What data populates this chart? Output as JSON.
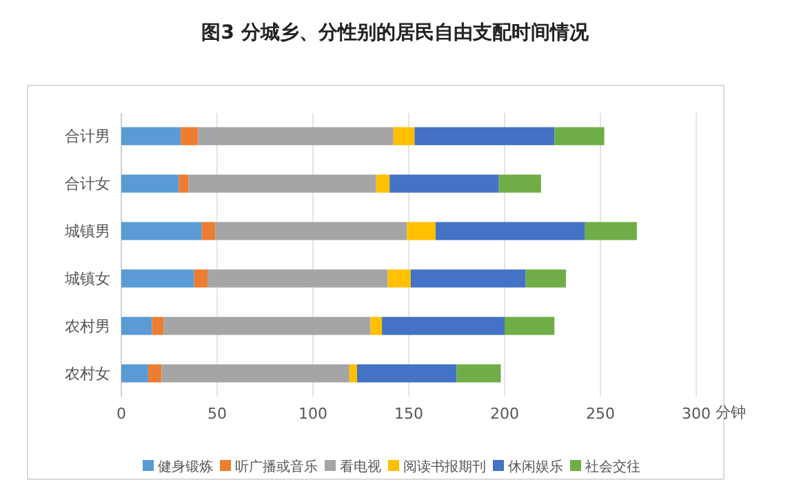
{
  "chart_data": {
    "type": "bar",
    "orientation": "horizontal",
    "stacked": true,
    "title": "图3 分城乡、分性别的居民自由支配时间情况",
    "xlabel": "分钟",
    "categories": [
      "合计男",
      "合计女",
      "城镇男",
      "城镇女",
      "农村男",
      "农村女"
    ],
    "series": [
      {
        "name": "健身锻炼",
        "color": "#5b9bd5",
        "values": [
          31,
          30,
          42,
          38,
          16,
          14
        ]
      },
      {
        "name": "听广播或音乐",
        "color": "#ed7d31",
        "values": [
          9,
          5,
          7,
          7,
          6,
          7
        ]
      },
      {
        "name": "看电视",
        "color": "#a5a5a5",
        "values": [
          102,
          98,
          100,
          94,
          108,
          98
        ]
      },
      {
        "name": "阅读书报期刊",
        "color": "#ffc000",
        "values": [
          11,
          7,
          15,
          12,
          6,
          4
        ]
      },
      {
        "name": "休闲娱乐",
        "color": "#4472c4",
        "values": [
          73,
          57,
          78,
          60,
          64,
          52
        ]
      },
      {
        "name": "社会交往",
        "color": "#70ad47",
        "values": [
          26,
          22,
          27,
          21,
          26,
          23
        ]
      }
    ],
    "xlim": [
      0,
      300
    ],
    "xticks": [
      0,
      50,
      100,
      150,
      200,
      250,
      300
    ],
    "grid": "x",
    "legend": "bottom"
  }
}
